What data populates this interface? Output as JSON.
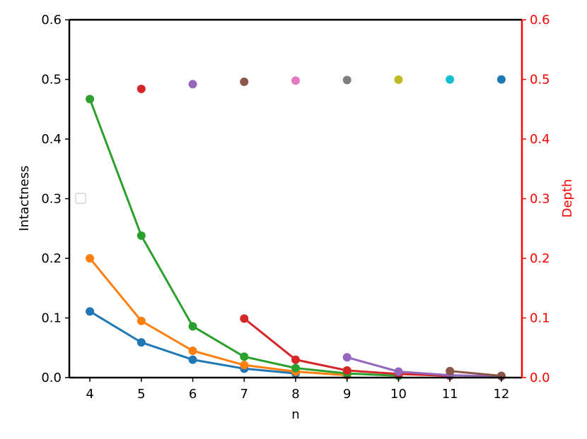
{
  "chart_data": {
    "type": "line",
    "xlabel": "n",
    "ylabel": "Intactness",
    "y2label": "Depth",
    "x_ticks": [
      "4",
      "5",
      "6",
      "7",
      "8",
      "9",
      "10",
      "11",
      "12"
    ],
    "y_ticks": [
      "0.0",
      "0.1",
      "0.2",
      "0.3",
      "0.4",
      "0.5",
      "0.6"
    ],
    "y2_ticks": [
      "0.0",
      "0.1",
      "0.2",
      "0.3",
      "0.4",
      "0.5",
      "0.6"
    ],
    "xlim": [
      3.6,
      12.4
    ],
    "ylim": [
      0,
      0.6
    ],
    "y2lim": [
      0,
      0.6
    ],
    "right_axis_color": "#ff0000",
    "legend_location": "center-left",
    "grid": false,
    "line_series": [
      {
        "color": "#1f77b4",
        "x": [
          4,
          5,
          6,
          7,
          8
        ],
        "values": [
          0.111,
          0.059,
          0.03,
          0.015,
          0.007
        ]
      },
      {
        "color": "#ff7f0e",
        "x": [
          4,
          5,
          6,
          7,
          8,
          9
        ],
        "values": [
          0.2,
          0.095,
          0.045,
          0.021,
          0.01,
          0.004
        ]
      },
      {
        "color": "#2ca02c",
        "x": [
          4,
          5,
          6,
          7,
          8,
          9,
          10
        ],
        "values": [
          0.467,
          0.238,
          0.086,
          0.035,
          0.016,
          0.007,
          0.003
        ]
      },
      {
        "color": "#d62728",
        "x": [
          7,
          8,
          9,
          10,
          11
        ],
        "values": [
          0.099,
          0.03,
          0.012,
          0.006,
          0.003
        ]
      },
      {
        "color": "#9467bd",
        "x": [
          9,
          10,
          11,
          12
        ],
        "values": [
          0.034,
          0.01,
          0.004,
          0.002
        ]
      },
      {
        "color": "#8c564b",
        "x": [
          11,
          12
        ],
        "values": [
          0.011,
          0.003
        ]
      }
    ],
    "depth_points": [
      {
        "x": 5,
        "value": 0.484,
        "color": "#d62728"
      },
      {
        "x": 6,
        "value": 0.492,
        "color": "#9467bd"
      },
      {
        "x": 7,
        "value": 0.496,
        "color": "#8c564b"
      },
      {
        "x": 8,
        "value": 0.498,
        "color": "#e377c2"
      },
      {
        "x": 9,
        "value": 0.499,
        "color": "#7f7f7f"
      },
      {
        "x": 10,
        "value": 0.4995,
        "color": "#bcbd22"
      },
      {
        "x": 11,
        "value": 0.4998,
        "color": "#17becf"
      },
      {
        "x": 12,
        "value": 0.4999,
        "color": "#1f77b4"
      }
    ]
  }
}
